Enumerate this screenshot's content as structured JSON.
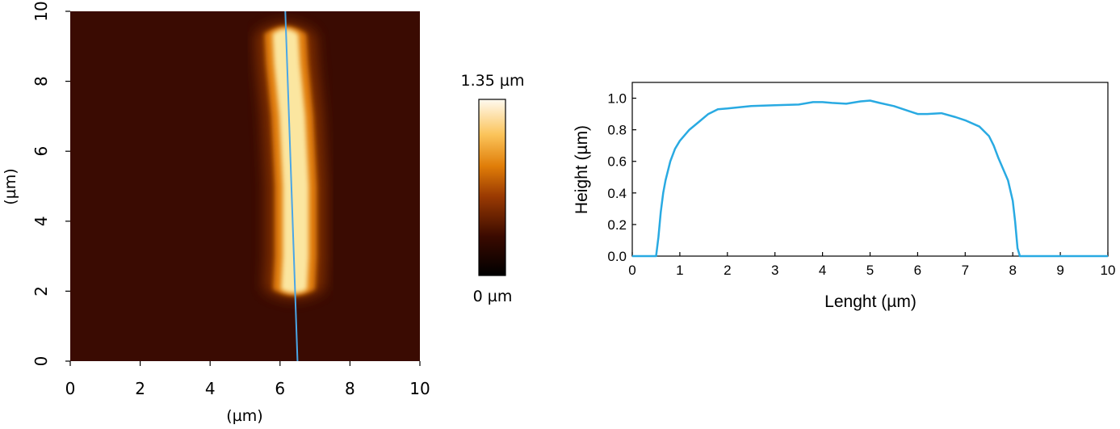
{
  "chart_data": [
    {
      "type": "heatmap",
      "xlabel": "(µm)",
      "ylabel": "(µm)",
      "xlim": [
        0,
        10
      ],
      "ylim": [
        0,
        10
      ],
      "xticks": [
        "0",
        "2",
        "4",
        "6",
        "8",
        "10"
      ],
      "yticks": [
        "0",
        "2",
        "4",
        "6",
        "8",
        "10"
      ],
      "colorbar": {
        "max_label": "1.35 µm",
        "min_label": "0 µm",
        "range": [
          0,
          1.35
        ]
      },
      "colors": {
        "background": "#3a0b02",
        "low": "#000000",
        "mid_dark": "#5a1000",
        "mid": "#e07d08",
        "high": "#fff2b0",
        "top": "#fffaf0",
        "profile_line": "#4aa6e6"
      },
      "feature": {
        "centerline": [
          [
            6.15,
            9.45
          ],
          [
            6.2,
            8.5
          ],
          [
            6.35,
            7.0
          ],
          [
            6.45,
            5.0
          ],
          [
            6.45,
            3.0
          ],
          [
            6.4,
            2.05
          ]
        ],
        "width_um": 1.2,
        "peak_height_um": 1.0
      },
      "profile_line": {
        "start": [
          6.15,
          10.0
        ],
        "end": [
          6.5,
          0.0
        ]
      }
    },
    {
      "type": "line",
      "xlabel": "Lenght (µm)",
      "ylabel": "Height (µm)",
      "xlim": [
        0,
        10
      ],
      "ylim": [
        0,
        1.1
      ],
      "xticks": [
        "0",
        "1",
        "2",
        "3",
        "4",
        "5",
        "6",
        "7",
        "8",
        "9",
        "10"
      ],
      "yticks": [
        "0.0",
        "0.2",
        "0.4",
        "0.6",
        "0.8",
        "1.0"
      ],
      "grid": false,
      "color": "#29aae2",
      "series": [
        {
          "x": [
            0.0,
            0.5,
            0.55,
            0.6,
            0.65,
            0.7,
            0.8,
            0.9,
            1.0,
            1.2,
            1.4,
            1.6,
            1.8,
            2.0,
            2.5,
            3.0,
            3.5,
            3.8,
            4.0,
            4.2,
            4.5,
            4.8,
            5.0,
            5.2,
            5.5,
            5.8,
            6.0,
            6.2,
            6.5,
            6.8,
            7.0,
            7.3,
            7.5,
            7.6,
            7.7,
            7.8,
            7.9,
            8.0,
            8.05,
            8.1,
            8.15,
            8.5,
            9.0,
            9.5,
            10.0
          ],
          "y": [
            0.0,
            0.0,
            0.12,
            0.28,
            0.4,
            0.48,
            0.6,
            0.68,
            0.73,
            0.8,
            0.85,
            0.9,
            0.93,
            0.935,
            0.95,
            0.955,
            0.96,
            0.975,
            0.975,
            0.97,
            0.965,
            0.98,
            0.985,
            0.97,
            0.95,
            0.92,
            0.9,
            0.9,
            0.905,
            0.88,
            0.86,
            0.82,
            0.76,
            0.7,
            0.62,
            0.55,
            0.48,
            0.35,
            0.22,
            0.05,
            0.0,
            0.0,
            0.0,
            0.0,
            0.0
          ]
        }
      ]
    }
  ]
}
